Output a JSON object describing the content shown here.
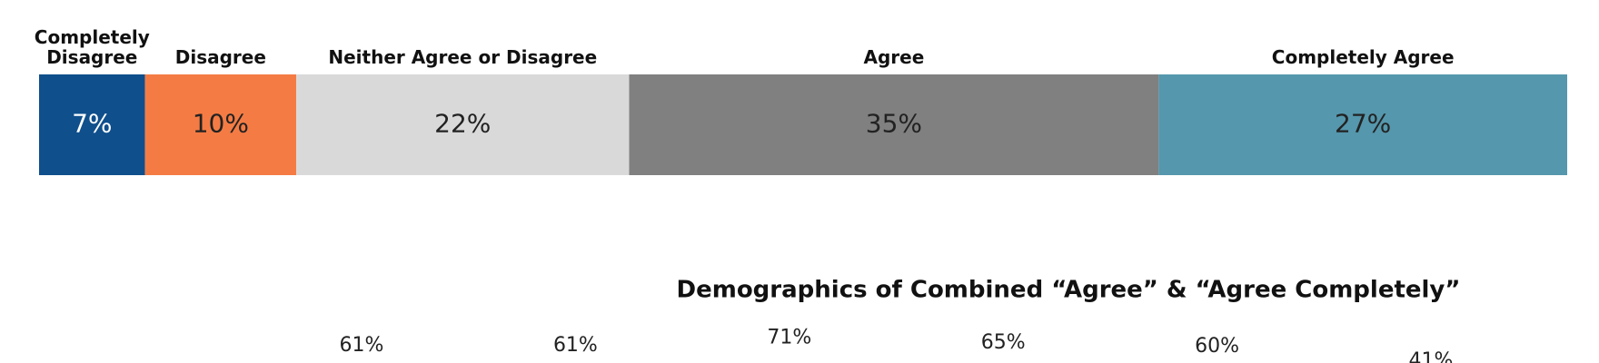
{
  "chart_data": [
    {
      "type": "stacked-bar",
      "series": [
        {
          "name": "Completely Disagree",
          "color": "#0f4f8c",
          "values": [
            7
          ],
          "value_labels": [
            "7%"
          ]
        },
        {
          "name": "Disagree",
          "color": "#f47c44",
          "values": [
            10
          ],
          "value_labels": [
            "10%"
          ]
        },
        {
          "name": "Neither Agree or Disagree",
          "color": "#d9d9d9",
          "values": [
            22
          ],
          "value_labels": [
            "22%"
          ]
        },
        {
          "name": "Agree",
          "color": "#808080",
          "values": [
            35
          ],
          "value_labels": [
            "35%"
          ]
        },
        {
          "name": "Completely Agree",
          "color": "#5597ad",
          "values": [
            27
          ],
          "value_labels": [
            "27%"
          ]
        }
      ]
    },
    {
      "type": "bar",
      "title": "Demographics of Combined “Agree” & “Agree Completely”",
      "values": [
        61,
        61,
        71,
        65,
        60,
        41
      ],
      "value_labels": [
        "61%",
        "61%",
        "71%",
        "65%",
        "60%",
        "41%"
      ]
    }
  ]
}
